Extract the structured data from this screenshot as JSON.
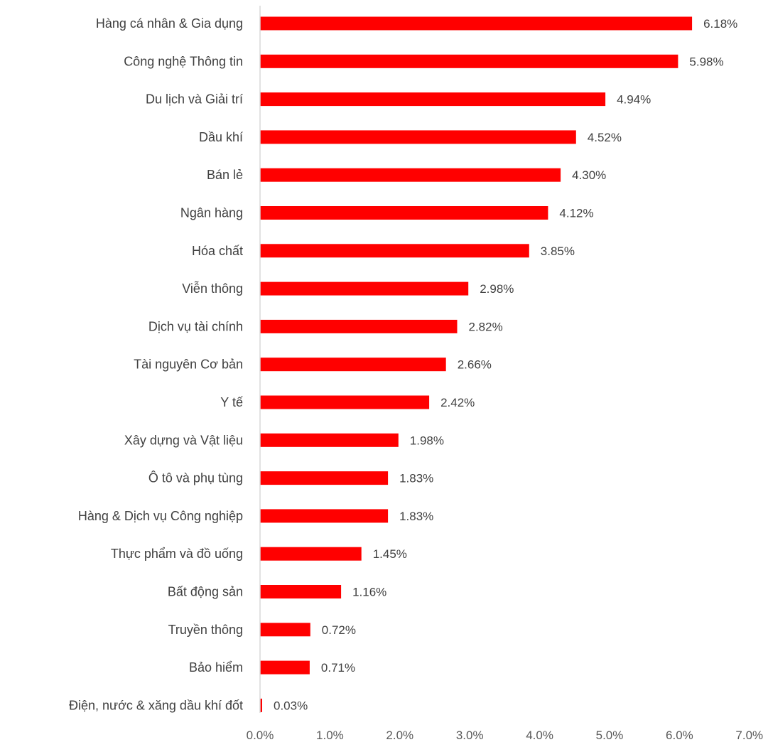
{
  "chart_data": {
    "type": "bar",
    "orientation": "horizontal",
    "title": "",
    "xlabel": "",
    "ylabel": "",
    "xlim": [
      0,
      7
    ],
    "x_ticks": [
      "0.0%",
      "1.0%",
      "2.0%",
      "3.0%",
      "4.0%",
      "5.0%",
      "6.0%",
      "7.0%"
    ],
    "grid": false,
    "bar_color": "#ff0000",
    "categories": [
      "Hàng cá nhân & Gia dụng",
      "Công nghệ Thông tin",
      "Du lịch và Giải trí",
      "Dầu khí",
      "Bán lẻ",
      "Ngân hàng",
      "Hóa chất",
      "Viễn thông",
      "Dịch vụ tài chính",
      "Tài nguyên Cơ bản",
      "Y tế",
      "Xây dựng và Vật liệu",
      "Ô tô và phụ tùng",
      "Hàng & Dịch vụ Công nghiệp",
      "Thực phẩm và đồ uống",
      "Bất động sản",
      "Truyền thông",
      "Bảo hiểm",
      "Điện, nước & xăng dầu khí đốt"
    ],
    "values": [
      6.18,
      5.98,
      4.94,
      4.52,
      4.3,
      4.12,
      3.85,
      2.98,
      2.82,
      2.66,
      2.42,
      1.98,
      1.83,
      1.83,
      1.45,
      1.16,
      0.72,
      0.71,
      0.03
    ],
    "value_labels": [
      "6.18%",
      "5.98%",
      "4.94%",
      "4.52%",
      "4.30%",
      "4.12%",
      "3.85%",
      "2.98%",
      "2.82%",
      "2.66%",
      "2.42%",
      "1.98%",
      "1.83%",
      "1.83%",
      "1.45%",
      "1.16%",
      "0.72%",
      "0.71%",
      "0.03%"
    ]
  }
}
